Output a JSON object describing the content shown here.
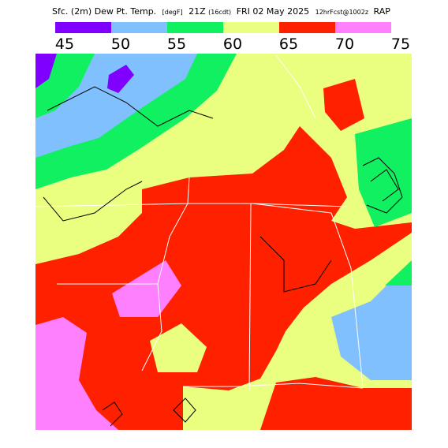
{
  "header": {
    "title_parts": [
      "Sfc. (2m) Dew Pt. Temp.",
      "[degF]",
      "21Z",
      "(16cdt)",
      "FRI 02 May 2025",
      "12hrFcst@1002z",
      "RAP"
    ]
  },
  "legend": {
    "ticks": [
      45,
      50,
      55,
      60,
      65,
      70,
      75
    ],
    "colors": [
      "#7f00ff",
      "#80c0ff",
      "#10f060",
      "#eaff80",
      "#ff2000",
      "#ff80ff"
    ]
  }
}
